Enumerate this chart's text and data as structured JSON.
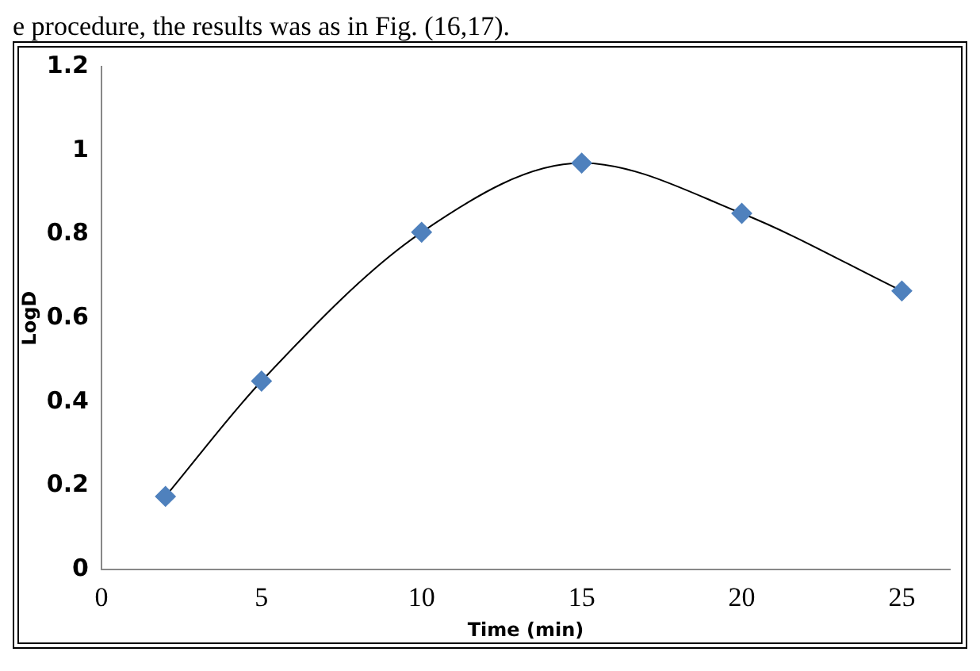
{
  "chart_data": {
    "type": "line",
    "xlabel": "Time (min)",
    "ylabel": "LogD",
    "annotations": [
      "e procedure, the results was as in Fig. (16,17)."
    ],
    "x": [
      2,
      5,
      10,
      15,
      20,
      25
    ],
    "series": [
      {
        "color": "#4f81bd",
        "values": [
          0.175,
          0.45,
          0.805,
          0.97,
          0.85,
          0.665
        ]
      }
    ],
    "xlim": [
      0,
      26.5
    ],
    "xticks": [
      0,
      5,
      10,
      15,
      20,
      25
    ],
    "ylim": [
      0,
      1.2
    ],
    "yticks": [
      0,
      0.2,
      0.4,
      0.6,
      0.8,
      1,
      1.2
    ],
    "grid": false,
    "legend": false,
    "marker": "diamond",
    "line_style": "solid"
  }
}
